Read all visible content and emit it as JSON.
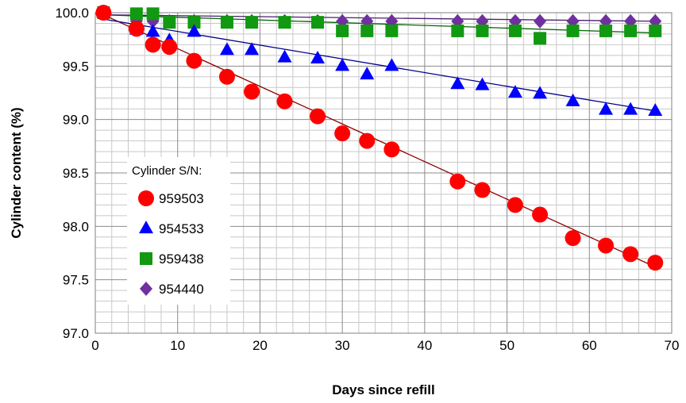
{
  "chart_data": {
    "type": "scatter",
    "xlabel": "Days since refill",
    "ylabel": "Cylinder content (%)",
    "xlim": [
      0,
      70
    ],
    "ylim": [
      97.0,
      100.0
    ],
    "x_ticks": [
      "0",
      "10",
      "20",
      "30",
      "40",
      "50",
      "60",
      "70"
    ],
    "y_ticks": [
      "97.0",
      "97.5",
      "98.0",
      "98.5",
      "99.0",
      "99.5",
      "100.0"
    ],
    "grid": true,
    "legend": {
      "title": "Cylinder S/N:",
      "placement": "lower-left"
    },
    "series": [
      {
        "name": "959503",
        "marker": "circle",
        "color": "#ff0000",
        "trend_color": "#8b0000",
        "trend": [
          [
            1,
            99.98
          ],
          [
            68,
            97.62
          ]
        ],
        "x": [
          1,
          5,
          7,
          9,
          12,
          16,
          19,
          23,
          27,
          30,
          33,
          36,
          44,
          47,
          51,
          54,
          58,
          62,
          65,
          68
        ],
        "y": [
          100.0,
          99.85,
          99.7,
          99.68,
          99.55,
          99.4,
          99.26,
          99.17,
          99.03,
          98.87,
          98.8,
          98.72,
          98.42,
          98.34,
          98.2,
          98.11,
          97.89,
          97.82,
          97.74,
          97.66
        ]
      },
      {
        "name": "954533",
        "marker": "triangle",
        "color": "#0000ff",
        "trend_color": "#00008b",
        "trend": [
          [
            1,
            99.94
          ],
          [
            68,
            99.08
          ]
        ],
        "x": [
          1,
          5,
          7,
          9,
          12,
          16,
          19,
          23,
          27,
          30,
          33,
          36,
          44,
          47,
          51,
          54,
          58,
          62,
          65,
          68
        ],
        "y": [
          100.0,
          99.84,
          99.82,
          99.74,
          99.82,
          99.65,
          99.65,
          99.58,
          99.57,
          99.5,
          99.42,
          99.5,
          99.33,
          99.32,
          99.25,
          99.24,
          99.17,
          99.09,
          99.09,
          99.08
        ]
      },
      {
        "name": "959438",
        "marker": "square",
        "color": "#119911",
        "trend_color": "#006400",
        "trend": [
          [
            1,
            99.98
          ],
          [
            68,
            99.81
          ]
        ],
        "x": [
          1,
          5,
          7,
          9,
          12,
          16,
          19,
          23,
          27,
          30,
          33,
          36,
          44,
          47,
          51,
          54,
          58,
          62,
          65,
          68
        ],
        "y": [
          100.0,
          99.99,
          99.99,
          99.91,
          99.91,
          99.91,
          99.91,
          99.91,
          99.91,
          99.83,
          99.83,
          99.83,
          99.83,
          99.83,
          99.83,
          99.76,
          99.83,
          99.83,
          99.83,
          99.83
        ]
      },
      {
        "name": "954440",
        "marker": "diamond",
        "color": "#7030a0",
        "trend_color": "#4b2070",
        "trend": [
          [
            1,
            99.98
          ],
          [
            68,
            99.92
          ]
        ],
        "x": [
          1,
          5,
          7,
          9,
          12,
          16,
          19,
          23,
          27,
          30,
          33,
          36,
          44,
          47,
          51,
          54,
          58,
          62,
          65,
          68
        ],
        "y": [
          100.0,
          99.92,
          99.92,
          99.92,
          99.92,
          99.92,
          99.92,
          99.92,
          99.92,
          99.92,
          99.92,
          99.92,
          99.92,
          99.92,
          99.92,
          99.92,
          99.92,
          99.92,
          99.92,
          99.92
        ]
      }
    ]
  }
}
